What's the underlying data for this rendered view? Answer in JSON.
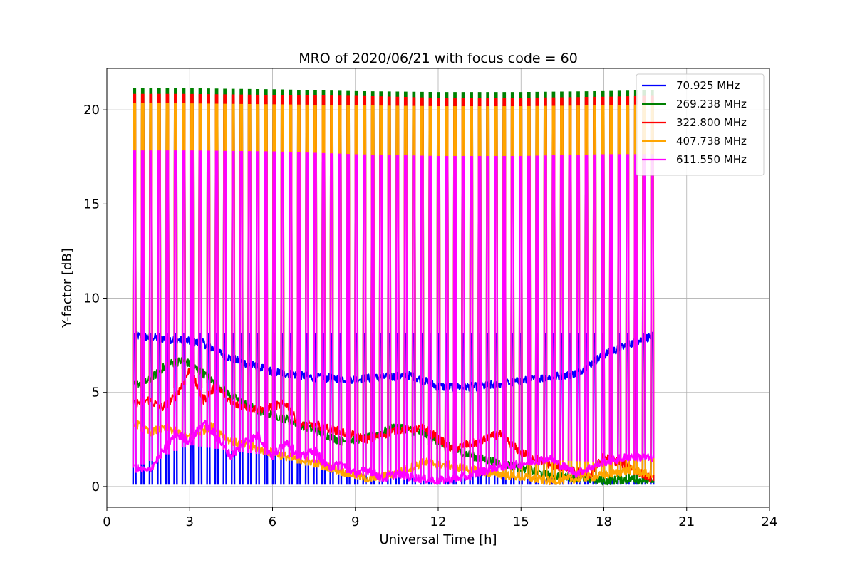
{
  "chart_data": {
    "type": "line",
    "title": "MRO of 2020/06/21 with focus code = 60",
    "xlabel": "Universal Time [h]",
    "ylabel": "Y-factor [dB]",
    "xlim": [
      0,
      24
    ],
    "ylim": [
      -1.1,
      22.2
    ],
    "xticks": [
      0,
      3,
      6,
      9,
      12,
      15,
      18,
      21,
      24
    ],
    "yticks": [
      0,
      5,
      10,
      15,
      20
    ],
    "grid": true,
    "legend_position": "top-right",
    "spike_schedule": {
      "first_h": 1.0,
      "last_h": 19.75,
      "count": 64
    },
    "series": [
      {
        "name": " 70.925 MHz",
        "color": "#0000ff",
        "spike_top": [
          [
            1.0,
            8.1
          ],
          [
            19.75,
            8.1
          ]
        ],
        "spike_bottom": [
          [
            1.0,
            0.1
          ],
          [
            19.75,
            0.1
          ]
        ],
        "baseline": [
          [
            1.0,
            8.0
          ],
          [
            2.5,
            7.8
          ],
          [
            3.5,
            7.6
          ],
          [
            4.5,
            6.8
          ],
          [
            6.0,
            6.1
          ],
          [
            7.5,
            5.8
          ],
          [
            9.0,
            5.7
          ],
          [
            11.0,
            5.9
          ],
          [
            12.0,
            5.3
          ],
          [
            13.5,
            5.3
          ],
          [
            15.0,
            5.6
          ],
          [
            17.0,
            6.0
          ],
          [
            18.0,
            7.0
          ],
          [
            19.0,
            7.6
          ],
          [
            19.75,
            8.0
          ]
        ]
      },
      {
        "name": "269.238 MHz",
        "color": "#008000",
        "spike_top": [
          [
            1.0,
            21.1
          ],
          [
            3.0,
            21.1
          ],
          [
            6.0,
            21.05
          ],
          [
            9.0,
            20.95
          ],
          [
            12.0,
            20.9
          ],
          [
            15.0,
            20.9
          ],
          [
            18.0,
            20.95
          ],
          [
            19.75,
            21.0
          ]
        ],
        "spike_bottom": [
          [
            1.0,
            5.4
          ],
          [
            2.5,
            6.5
          ],
          [
            4.0,
            5.2
          ],
          [
            6.0,
            3.6
          ],
          [
            8.5,
            2.4
          ],
          [
            10.5,
            3.1
          ],
          [
            12.0,
            2.0
          ],
          [
            14.0,
            1.2
          ],
          [
            16.0,
            0.6
          ],
          [
            18.0,
            0.4
          ],
          [
            19.75,
            0.2
          ]
        ],
        "baseline": [
          [
            1.0,
            5.4
          ],
          [
            1.5,
            5.6
          ],
          [
            2.2,
            6.5
          ],
          [
            2.8,
            6.7
          ],
          [
            3.5,
            6.0
          ],
          [
            4.5,
            4.8
          ],
          [
            5.5,
            4.0
          ],
          [
            6.5,
            3.6
          ],
          [
            7.5,
            3.0
          ],
          [
            8.5,
            2.4
          ],
          [
            9.5,
            2.6
          ],
          [
            10.5,
            3.2
          ],
          [
            11.5,
            2.8
          ],
          [
            12.5,
            2.0
          ],
          [
            13.5,
            1.5
          ],
          [
            15.0,
            1.0
          ],
          [
            16.0,
            0.6
          ],
          [
            17.0,
            0.5
          ],
          [
            18.0,
            0.3
          ],
          [
            19.0,
            0.4
          ],
          [
            19.75,
            0.3
          ]
        ]
      },
      {
        "name": "322.800 MHz",
        "color": "#ff0000",
        "spike_top": [
          [
            1.0,
            20.8
          ],
          [
            3.0,
            20.8
          ],
          [
            6.0,
            20.75
          ],
          [
            9.0,
            20.7
          ],
          [
            12.0,
            20.6
          ],
          [
            15.0,
            20.6
          ],
          [
            18.0,
            20.65
          ],
          [
            19.75,
            20.7
          ]
        ],
        "spike_bottom": [
          [
            1.0,
            4.4
          ],
          [
            3.0,
            5.5
          ],
          [
            5.0,
            4.1
          ],
          [
            7.0,
            3.2
          ],
          [
            9.0,
            2.5
          ],
          [
            11.0,
            3.1
          ],
          [
            12.5,
            1.8
          ],
          [
            14.0,
            2.6
          ],
          [
            16.0,
            1.1
          ],
          [
            18.0,
            1.2
          ],
          [
            19.75,
            0.3
          ]
        ],
        "baseline": [
          [
            1.0,
            4.4
          ],
          [
            1.5,
            4.6
          ],
          [
            2.0,
            4.2
          ],
          [
            2.5,
            4.8
          ],
          [
            3.0,
            6.2
          ],
          [
            3.5,
            4.6
          ],
          [
            4.0,
            5.4
          ],
          [
            4.5,
            4.4
          ],
          [
            5.5,
            4.1
          ],
          [
            6.5,
            4.4
          ],
          [
            7.0,
            3.2
          ],
          [
            7.5,
            3.3
          ],
          [
            8.5,
            2.9
          ],
          [
            9.5,
            2.5
          ],
          [
            10.5,
            3.0
          ],
          [
            11.5,
            3.1
          ],
          [
            12.5,
            2.0
          ],
          [
            13.5,
            2.4
          ],
          [
            14.2,
            2.8
          ],
          [
            15.0,
            1.8
          ],
          [
            16.0,
            1.2
          ],
          [
            17.0,
            0.8
          ],
          [
            17.5,
            0.6
          ],
          [
            18.0,
            1.6
          ],
          [
            19.0,
            1.0
          ],
          [
            19.75,
            0.4
          ]
        ]
      },
      {
        "name": "407.738 MHz",
        "color": "#ffa500",
        "spike_top": [
          [
            1.0,
            20.3
          ],
          [
            3.0,
            20.3
          ],
          [
            6.0,
            20.25
          ],
          [
            9.0,
            20.2
          ],
          [
            12.0,
            20.15
          ],
          [
            15.0,
            20.15
          ],
          [
            18.0,
            20.2
          ],
          [
            19.75,
            20.25
          ]
        ],
        "spike_bottom": [
          [
            1.0,
            3.4
          ],
          [
            3.0,
            2.8
          ],
          [
            5.0,
            2.2
          ],
          [
            7.0,
            1.2
          ],
          [
            9.0,
            0.5
          ],
          [
            11.0,
            1.0
          ],
          [
            13.0,
            0.8
          ],
          [
            15.0,
            0.4
          ],
          [
            17.0,
            0.5
          ],
          [
            18.5,
            0.7
          ],
          [
            19.75,
            0.6
          ]
        ],
        "baseline": [
          [
            1.0,
            3.4
          ],
          [
            1.5,
            2.9
          ],
          [
            2.2,
            3.1
          ],
          [
            3.0,
            2.6
          ],
          [
            3.8,
            3.2
          ],
          [
            4.5,
            2.4
          ],
          [
            5.5,
            2.0
          ],
          [
            6.5,
            1.6
          ],
          [
            7.5,
            1.3
          ],
          [
            8.5,
            0.8
          ],
          [
            9.5,
            0.4
          ],
          [
            10.5,
            0.7
          ],
          [
            11.5,
            1.3
          ],
          [
            12.5,
            1.1
          ],
          [
            13.5,
            0.8
          ],
          [
            15.0,
            0.5
          ],
          [
            16.0,
            0.3
          ],
          [
            17.0,
            0.4
          ],
          [
            18.0,
            0.6
          ],
          [
            19.0,
            0.9
          ],
          [
            19.75,
            0.6
          ]
        ]
      },
      {
        "name": "611.550 MHz",
        "color": "#ff00ff",
        "spike_top": [
          [
            1.0,
            17.8
          ],
          [
            3.0,
            17.8
          ],
          [
            6.0,
            17.75
          ],
          [
            9.0,
            17.6
          ],
          [
            12.0,
            17.5
          ],
          [
            15.0,
            17.5
          ],
          [
            18.0,
            17.6
          ],
          [
            19.75,
            17.6
          ]
        ],
        "spike_bottom": [
          [
            1.0,
            1.0
          ],
          [
            3.0,
            2.2
          ],
          [
            5.0,
            1.8
          ],
          [
            7.0,
            1.5
          ],
          [
            9.0,
            0.6
          ],
          [
            11.0,
            0.5
          ],
          [
            12.5,
            0.3
          ],
          [
            14.0,
            0.8
          ],
          [
            16.0,
            1.4
          ],
          [
            18.0,
            1.3
          ],
          [
            19.75,
            1.5
          ]
        ],
        "baseline": [
          [
            1.0,
            1.0
          ],
          [
            1.5,
            0.8
          ],
          [
            2.0,
            1.8
          ],
          [
            2.5,
            2.8
          ],
          [
            3.0,
            2.4
          ],
          [
            3.5,
            3.4
          ],
          [
            4.0,
            2.6
          ],
          [
            4.5,
            1.6
          ],
          [
            5.0,
            2.4
          ],
          [
            5.5,
            2.7
          ],
          [
            6.0,
            1.6
          ],
          [
            6.5,
            2.4
          ],
          [
            7.0,
            1.5
          ],
          [
            7.5,
            2.0
          ],
          [
            8.0,
            1.0
          ],
          [
            8.5,
            1.2
          ],
          [
            9.0,
            0.7
          ],
          [
            9.5,
            0.9
          ],
          [
            10.0,
            0.4
          ],
          [
            10.5,
            0.7
          ],
          [
            11.0,
            0.5
          ],
          [
            12.0,
            0.3
          ],
          [
            13.0,
            0.5
          ],
          [
            14.0,
            1.0
          ],
          [
            15.0,
            1.2
          ],
          [
            16.0,
            1.5
          ],
          [
            17.0,
            0.7
          ],
          [
            18.0,
            1.3
          ],
          [
            19.0,
            1.6
          ],
          [
            19.75,
            1.5
          ]
        ]
      }
    ]
  }
}
